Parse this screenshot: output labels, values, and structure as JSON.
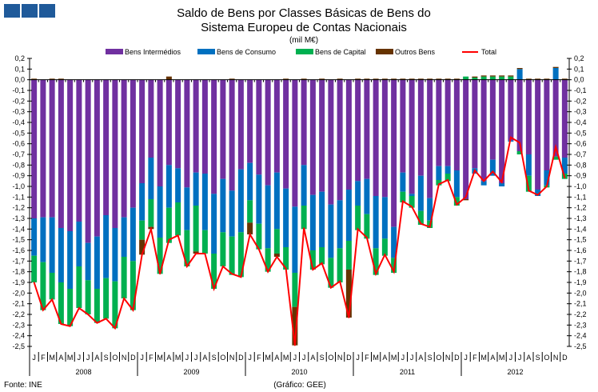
{
  "chart_data": {
    "type": "bar",
    "stacked": true,
    "title": [
      "Saldo de Bens por Classes Básicas de Bens do",
      "Sistema Europeu de Contas Nacionais"
    ],
    "subtitle": "(mil M€)",
    "ylim": [
      -2.5,
      0.2
    ],
    "yticks": [
      0.2,
      0.1,
      0.0,
      -0.1,
      -0.2,
      -0.3,
      -0.4,
      -0.5,
      -0.6,
      -0.7,
      -0.8,
      -0.9,
      -1.0,
      -1.1,
      -1.2,
      -1.3,
      -1.4,
      -1.5,
      -1.6,
      -1.7,
      -1.8,
      -1.9,
      -2.0,
      -2.1,
      -2.2,
      -2.3,
      -2.4,
      -2.5
    ],
    "ytick_labels": [
      "0,2",
      "0,1",
      "0,0",
      "-0,1",
      "-0,2",
      "-0,3",
      "-0,4",
      "-0,5",
      "-0,6",
      "-0,7",
      "-0,8",
      "-0,9",
      "-1,0",
      "-1,1",
      "-1,2",
      "-1,3",
      "-1,4",
      "-1,5",
      "-1,6",
      "-1,7",
      "-1,8",
      "-1,9",
      "-2,0",
      "-2,1",
      "-2,2",
      "-2,3",
      "-2,4",
      "-2,5"
    ],
    "months": [
      "J",
      "F",
      "M",
      "A",
      "M",
      "J",
      "J",
      "A",
      "S",
      "O",
      "N",
      "D"
    ],
    "years": [
      "2008",
      "2009",
      "2010",
      "2011",
      "2012"
    ],
    "legend_position": "top",
    "series": [
      {
        "name": "Bens Intermédios",
        "type": "bar",
        "color": "#7030a0",
        "values": [
          -1.3,
          -1.29,
          -1.29,
          -1.39,
          -1.42,
          -1.33,
          -1.53,
          -1.47,
          -1.27,
          -1.39,
          -1.29,
          -1.2,
          -0.97,
          -0.73,
          -1.0,
          -0.8,
          -0.83,
          -1.01,
          -0.87,
          -0.88,
          -1.07,
          -0.93,
          -1.04,
          -0.84,
          -0.78,
          -0.89,
          -0.99,
          -0.87,
          -1.02,
          -1.19,
          -0.8,
          -1.08,
          -1.05,
          -1.17,
          -1.13,
          -1.03,
          -0.95,
          -0.93,
          -1.09,
          -1.1,
          -1.38,
          -0.87,
          -1.07,
          -0.9,
          -1.11,
          -0.81,
          -0.81,
          -0.85,
          -1.12,
          -0.83,
          -0.95,
          -0.75,
          -0.97,
          -0.57,
          -0.67,
          -0.7,
          -1.03,
          -0.85,
          -0.72,
          -0.73
        ]
      },
      {
        "name": "Bens de Consumo",
        "type": "bar",
        "color": "#0070c0",
        "values": [
          -0.35,
          -0.42,
          -0.52,
          -0.51,
          -0.54,
          -0.42,
          -0.35,
          -0.49,
          -0.59,
          -0.5,
          -0.37,
          -0.5,
          -0.35,
          -0.39,
          -0.48,
          -0.4,
          -0.32,
          -0.4,
          -0.31,
          -0.53,
          -0.56,
          -0.5,
          -0.43,
          -0.59,
          -0.35,
          -0.46,
          -0.59,
          -0.53,
          -0.55,
          -0.62,
          -0.38,
          -0.52,
          -0.52,
          -0.5,
          -0.45,
          -0.48,
          -0.23,
          -0.33,
          -0.49,
          -0.39,
          -0.29,
          -0.18,
          -0.02,
          -0.33,
          -0.21,
          -0.13,
          -0.07,
          -0.25,
          0.0,
          -0.05,
          -0.04,
          -0.15,
          -0.03,
          -0.01,
          0.1,
          -0.2,
          -0.06,
          -0.14,
          0.11,
          -0.15
        ]
      },
      {
        "name": "Bens de Capital",
        "type": "bar",
        "color": "#00b050",
        "values": [
          -0.25,
          -0.45,
          -0.25,
          -0.39,
          -0.35,
          -0.39,
          -0.32,
          -0.32,
          -0.38,
          -0.44,
          -0.39,
          -0.46,
          -0.18,
          -0.26,
          -0.34,
          -0.33,
          -0.31,
          -0.34,
          -0.43,
          -0.22,
          -0.33,
          -0.32,
          -0.36,
          -0.42,
          -0.21,
          -0.24,
          -0.22,
          -0.23,
          -0.21,
          -0.32,
          -0.22,
          -0.18,
          -0.16,
          -0.28,
          -0.32,
          -0.27,
          -0.23,
          -0.23,
          -0.25,
          -0.16,
          -0.14,
          -0.1,
          -0.11,
          -0.13,
          -0.07,
          -0.05,
          -0.07,
          -0.08,
          0.03,
          0.02,
          0.03,
          0.03,
          0.03,
          0.03,
          -0.03,
          -0.15,
          0.0,
          -0.02,
          -0.03,
          -0.05
        ]
      },
      {
        "name": "Outros Bens",
        "type": "bar",
        "color": "#663300",
        "values": [
          0.01,
          0.0,
          0.01,
          0.01,
          0.0,
          0.0,
          0.0,
          0.0,
          0.0,
          0.0,
          0.0,
          0.0,
          -0.14,
          -0.02,
          0.0,
          0.03,
          0.0,
          0.0,
          -0.02,
          0.0,
          0.0,
          0.0,
          0.01,
          0.0,
          -0.11,
          0.0,
          0.0,
          -0.03,
          0.01,
          -0.36,
          0.01,
          0.0,
          0.01,
          0.0,
          0.01,
          -0.45,
          0.01,
          0.01,
          0.01,
          0.01,
          0.01,
          0.01,
          0.01,
          0.01,
          0.01,
          0.01,
          0.01,
          0.01,
          -0.01,
          0.01,
          0.01,
          0.01,
          0.01,
          0.01,
          0.01,
          0.01,
          0.01,
          0.01,
          0.01,
          0.01
        ]
      },
      {
        "name": "Total",
        "type": "line",
        "color": "#ff0000",
        "values": [
          -1.9,
          -2.16,
          -2.06,
          -2.29,
          -2.31,
          -2.14,
          -2.2,
          -2.28,
          -2.24,
          -2.33,
          -2.05,
          -2.16,
          -1.64,
          -1.4,
          -1.82,
          -1.5,
          -1.46,
          -1.75,
          -1.63,
          -1.63,
          -1.96,
          -1.75,
          -1.82,
          -1.85,
          -1.45,
          -1.59,
          -1.8,
          -1.66,
          -1.77,
          -2.49,
          -1.39,
          -1.78,
          -1.72,
          -1.95,
          -1.89,
          -2.23,
          -1.4,
          -1.48,
          -1.82,
          -1.64,
          -1.8,
          -1.14,
          -1.19,
          -1.35,
          -1.38,
          -0.98,
          -0.94,
          -1.17,
          -1.1,
          -0.85,
          -0.95,
          -0.86,
          -0.96,
          -0.54,
          -0.59,
          -1.04,
          -1.08,
          -1.0,
          -0.63,
          -0.92
        ]
      }
    ]
  },
  "source": "Fonte: INE",
  "credit": "(Gráfico: GEE)"
}
